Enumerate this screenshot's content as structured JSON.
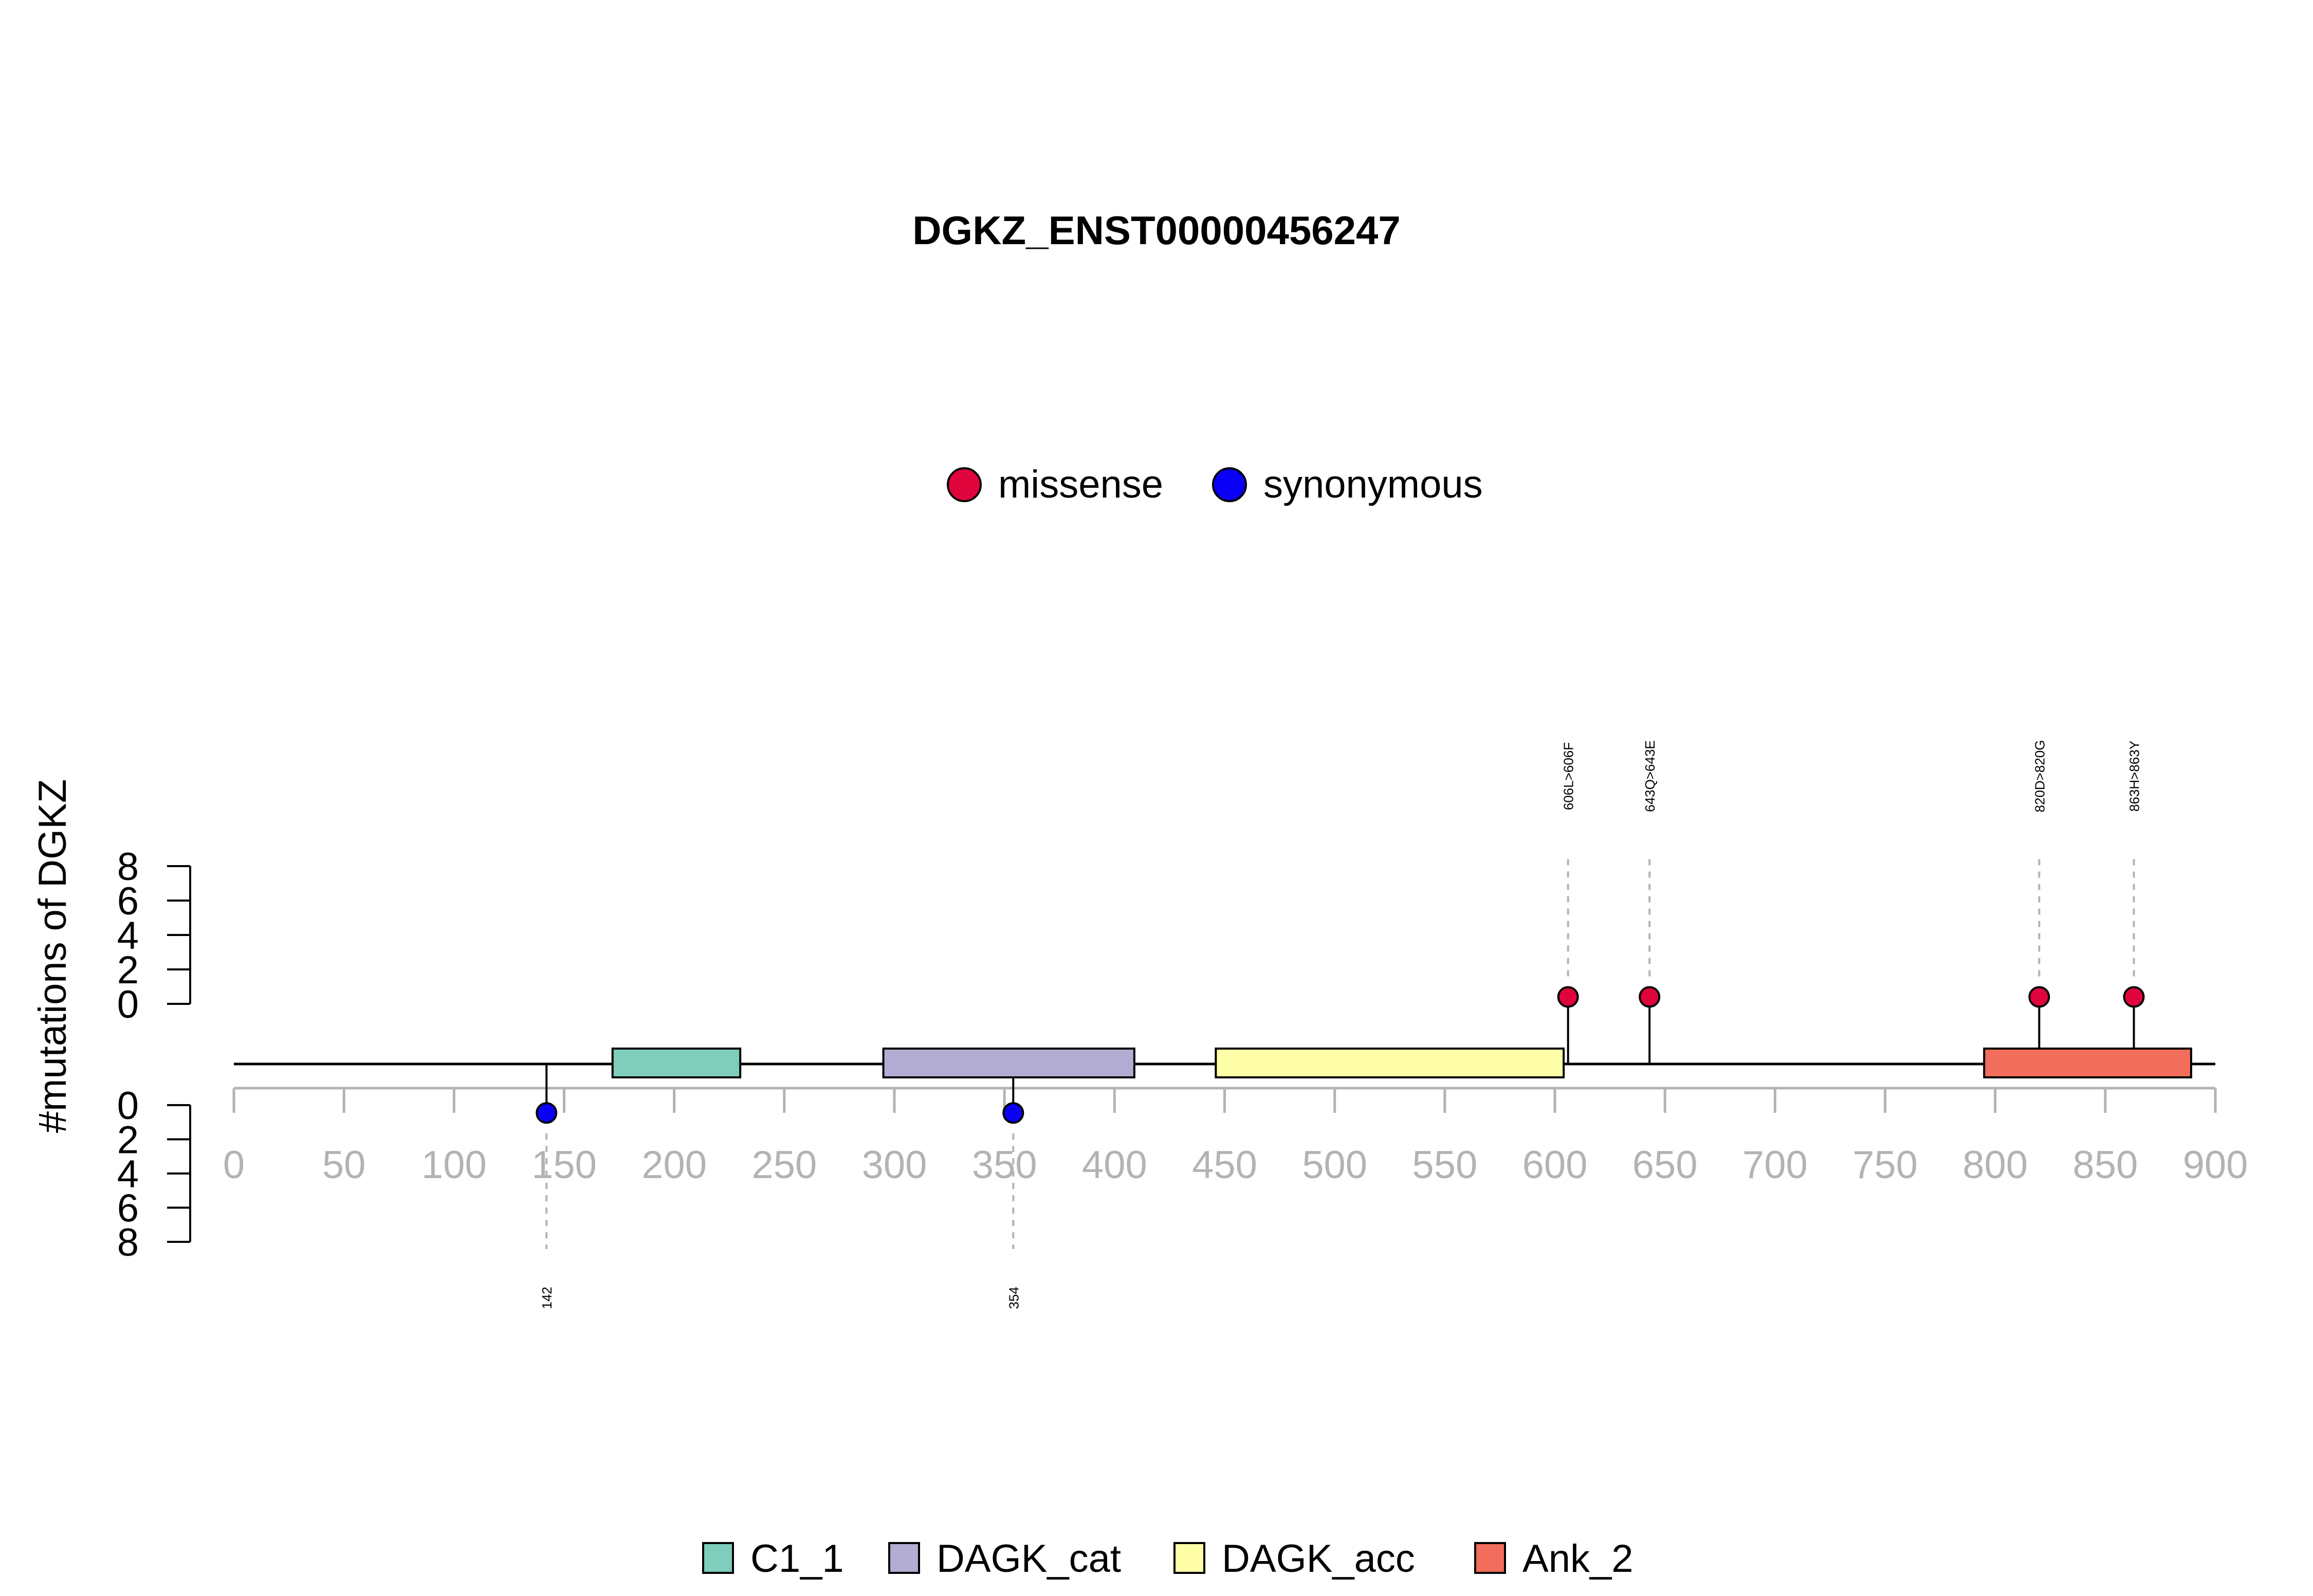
{
  "chart_data": {
    "type": "lollipop",
    "title": "DGKZ_ENST00000456247",
    "ylabel": "#mutations of DGKZ",
    "xlim": [
      0,
      900
    ],
    "x_ticks": [
      0,
      50,
      100,
      150,
      200,
      250,
      300,
      350,
      400,
      450,
      500,
      550,
      600,
      650,
      700,
      750,
      800,
      850,
      900
    ],
    "y_ticks_top": [
      0,
      2,
      4,
      6,
      8
    ],
    "y_ticks_bottom": [
      0,
      2,
      4,
      6,
      8
    ],
    "ylim": [
      0,
      8
    ],
    "protein_length": 900,
    "mutation_legend": [
      {
        "name": "missense",
        "color": "#e0043d"
      },
      {
        "name": "synonymous",
        "color": "#0a00f5"
      }
    ],
    "domain_legend": [
      {
        "name": "C1_1",
        "color": "#7fcdbb"
      },
      {
        "name": "DAGK_cat",
        "color": "#b3acd3"
      },
      {
        "name": "DAGK_acc",
        "color": "#ffffa8"
      },
      {
        "name": "Ank_2",
        "color": "#f26d5b"
      }
    ],
    "domains": [
      {
        "name": "C1_1",
        "start": 172,
        "end": 230,
        "color": "#7fcdbb"
      },
      {
        "name": "DAGK_cat",
        "start": 295,
        "end": 409,
        "color": "#b3acd3"
      },
      {
        "name": "DAGK_acc",
        "start": 446,
        "end": 604,
        "color": "#ffffa8"
      },
      {
        "name": "Ank_2",
        "start": 795,
        "end": 889,
        "color": "#f26d5b"
      }
    ],
    "mutations_top": [
      {
        "position": 606,
        "count": 1,
        "label": "606L>606F",
        "type": "missense"
      },
      {
        "position": 643,
        "count": 1,
        "label": "643Q>643E",
        "type": "missense"
      },
      {
        "position": 820,
        "count": 1,
        "label": "820D>820G",
        "type": "missense"
      },
      {
        "position": 863,
        "count": 1,
        "label": "863H>863Y",
        "type": "missense"
      }
    ],
    "mutations_bottom": [
      {
        "position": 142,
        "count": 1,
        "label": "142",
        "type": "synonymous"
      },
      {
        "position": 354,
        "count": 1,
        "label": "354",
        "type": "synonymous"
      }
    ]
  }
}
